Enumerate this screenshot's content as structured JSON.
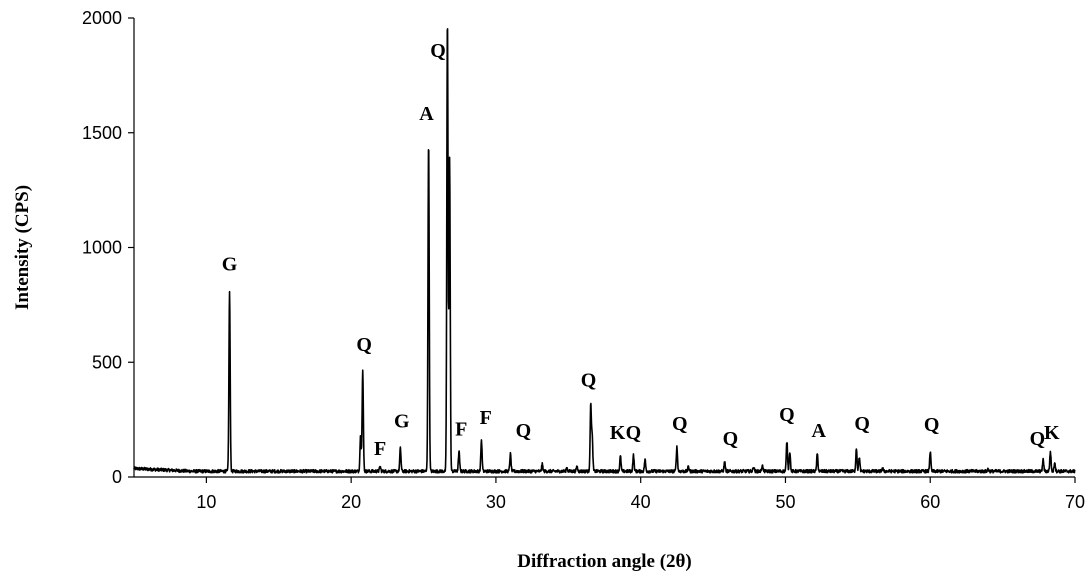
{
  "chart_data": {
    "type": "line",
    "title": "",
    "xlabel": "Diffraction angle (2θ)",
    "ylabel": "Intensity (CPS)",
    "xlim": [
      5,
      70
    ],
    "ylim": [
      0,
      2000
    ],
    "xticks": [
      10,
      20,
      30,
      40,
      50,
      60,
      70
    ],
    "yticks": [
      0,
      500,
      1000,
      1500,
      2000
    ],
    "grid": false,
    "legend": "none",
    "line_color": "#000000",
    "baseline": 25,
    "peaks": [
      {
        "x": 11.6,
        "y": 805
      },
      {
        "x": 20.8,
        "y": 460
      },
      {
        "x": 20.65,
        "y": 180
      },
      {
        "x": 22.0,
        "y": 45
      },
      {
        "x": 23.4,
        "y": 125
      },
      {
        "x": 25.35,
        "y": 1465
      },
      {
        "x": 26.65,
        "y": 2000
      },
      {
        "x": 26.8,
        "y": 1390
      },
      {
        "x": 27.45,
        "y": 110
      },
      {
        "x": 29.0,
        "y": 160
      },
      {
        "x": 31.0,
        "y": 100
      },
      {
        "x": 33.2,
        "y": 55
      },
      {
        "x": 34.9,
        "y": 40
      },
      {
        "x": 35.6,
        "y": 45
      },
      {
        "x": 36.55,
        "y": 310
      },
      {
        "x": 36.65,
        "y": 170
      },
      {
        "x": 38.6,
        "y": 90
      },
      {
        "x": 39.5,
        "y": 95
      },
      {
        "x": 40.3,
        "y": 75
      },
      {
        "x": 42.5,
        "y": 130
      },
      {
        "x": 43.3,
        "y": 45
      },
      {
        "x": 45.8,
        "y": 65
      },
      {
        "x": 47.8,
        "y": 45
      },
      {
        "x": 48.4,
        "y": 50
      },
      {
        "x": 50.1,
        "y": 155
      },
      {
        "x": 50.3,
        "y": 110
      },
      {
        "x": 52.2,
        "y": 100
      },
      {
        "x": 54.9,
        "y": 125
      },
      {
        "x": 55.1,
        "y": 85
      },
      {
        "x": 56.7,
        "y": 40
      },
      {
        "x": 60.0,
        "y": 110
      },
      {
        "x": 64.0,
        "y": 35
      },
      {
        "x": 67.8,
        "y": 75
      },
      {
        "x": 68.3,
        "y": 110
      },
      {
        "x": 68.6,
        "y": 65
      }
    ],
    "annotations": [
      {
        "text": "G",
        "x": 11.6,
        "y": 900
      },
      {
        "text": "Q",
        "x": 20.9,
        "y": 550
      },
      {
        "text": "G",
        "x": 23.5,
        "y": 215
      },
      {
        "text": "F",
        "x": 22.0,
        "y": 95
      },
      {
        "text": "A",
        "x": 25.2,
        "y": 1555
      },
      {
        "text": "Q",
        "x": 26.0,
        "y": 1830
      },
      {
        "text": "F",
        "x": 27.6,
        "y": 180
      },
      {
        "text": "F",
        "x": 29.3,
        "y": 230
      },
      {
        "text": "Q",
        "x": 31.9,
        "y": 175
      },
      {
        "text": "Q",
        "x": 36.4,
        "y": 395
      },
      {
        "text": "K",
        "x": 38.4,
        "y": 165
      },
      {
        "text": "Q",
        "x": 39.5,
        "y": 165
      },
      {
        "text": "Q",
        "x": 42.7,
        "y": 205
      },
      {
        "text": "Q",
        "x": 46.2,
        "y": 140
      },
      {
        "text": "Q",
        "x": 50.1,
        "y": 245
      },
      {
        "text": "A",
        "x": 52.3,
        "y": 175
      },
      {
        "text": "Q",
        "x": 55.3,
        "y": 205
      },
      {
        "text": "Q",
        "x": 60.1,
        "y": 200
      },
      {
        "text": "Q",
        "x": 67.4,
        "y": 140
      },
      {
        "text": "K",
        "x": 68.4,
        "y": 165
      }
    ]
  }
}
